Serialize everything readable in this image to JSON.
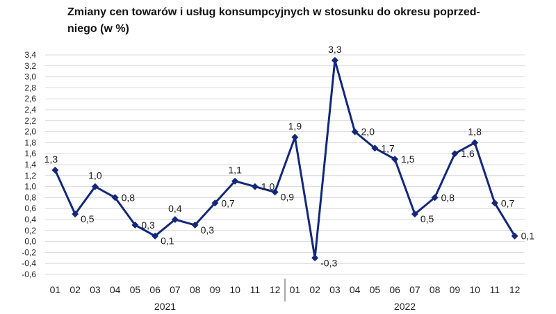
{
  "chart_data": {
    "type": "line",
    "title_lines": [
      "Zmiany cen towarów i usług konsumpcyjnych w stosunku do okresu poprzed-",
      "niego (w %)"
    ],
    "xlabel": "",
    "ylabel": "",
    "ylim": [
      -0.6,
      3.4
    ],
    "ytick_step": 0.2,
    "yticks": [
      "-0,6",
      "-0,4",
      "-0,2",
      "0,0",
      "0,2",
      "0,4",
      "0,6",
      "0,8",
      "1,0",
      "1,2",
      "1,4",
      "1,6",
      "1,8",
      "2,0",
      "2,2",
      "2,4",
      "2,6",
      "2,8",
      "3,0",
      "3,2",
      "3,4"
    ],
    "grid": true,
    "legend": "none",
    "groups": [
      {
        "year": "2021",
        "categories": [
          "01",
          "02",
          "03",
          "04",
          "05",
          "06",
          "07",
          "08",
          "09",
          "10",
          "11",
          "12"
        ]
      },
      {
        "year": "2022",
        "categories": [
          "01",
          "02",
          "03",
          "04",
          "05",
          "06",
          "07",
          "08",
          "09",
          "10",
          "11",
          "12"
        ]
      }
    ],
    "series": [
      {
        "color": "#14287a",
        "values": [
          1.3,
          0.5,
          1.0,
          0.8,
          0.3,
          0.1,
          0.4,
          0.3,
          0.7,
          1.1,
          1.0,
          0.9,
          1.9,
          -0.3,
          3.3,
          2.0,
          1.7,
          1.5,
          0.5,
          0.8,
          1.6,
          1.8,
          0.7,
          0.1
        ],
        "labels": [
          "1,3",
          "0,5",
          "1,0",
          "0,8",
          "0,3",
          "0,1",
          "0,4",
          "0,3",
          "0,7",
          "1,1",
          "1,0",
          "0,9",
          "1,9",
          "-0,3",
          "3,3",
          "2,0",
          "1,7",
          "1,5",
          "0,5",
          "0,8",
          "1,6",
          "1,8",
          "0,7",
          "0,1"
        ]
      }
    ]
  }
}
